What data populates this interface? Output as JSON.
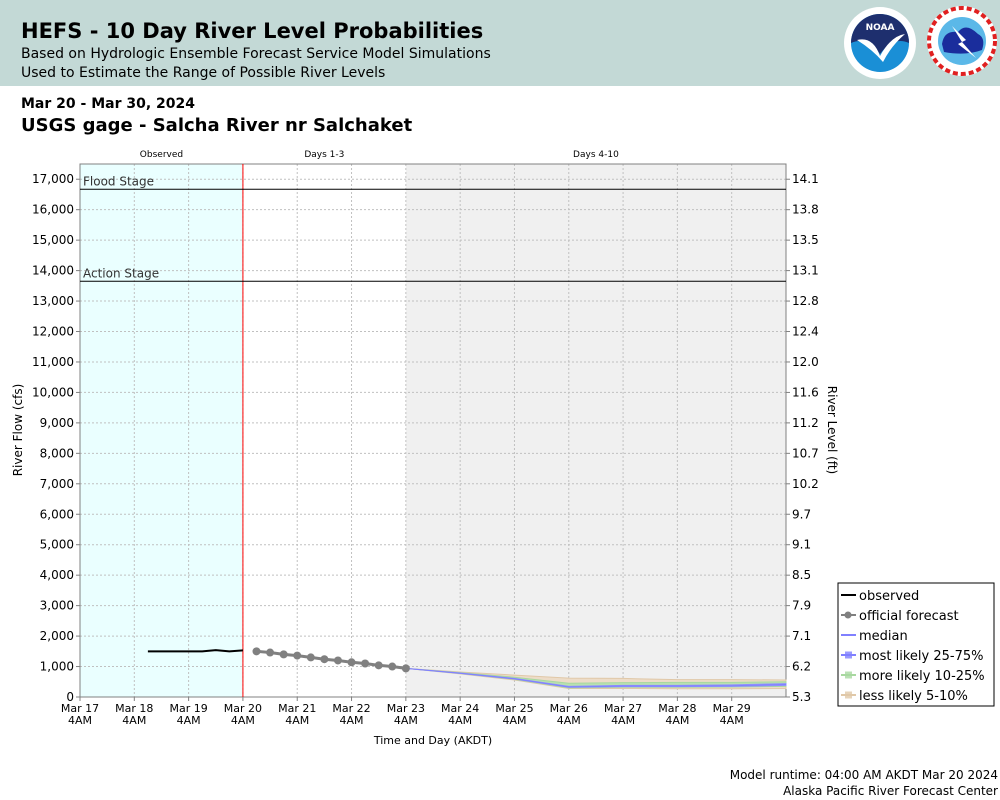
{
  "header": {
    "title": "HEFS - 10 Day River Level Probabilities",
    "subtitle1": "Based on Hydrologic Ensemble Forecast Service Model Simulations",
    "subtitle2": "Used to Estimate the Range of Possible River Levels",
    "logos": [
      "NOAA",
      "National Weather Service"
    ]
  },
  "dates": "Mar 20 - Mar 30, 2024",
  "gage": "USGS gage - Salcha River nr Salchaket",
  "footer": {
    "runtime": "Model runtime: 04:00 AM AKDT Mar 20 2024",
    "center": "Alaska Pacific River Forecast Center"
  },
  "colors": {
    "observed_bg": "#eaffff",
    "days410_bg": "#f0f0f0",
    "observed": "#000000",
    "forecast": "#808080",
    "median": "#8080ff",
    "p25_75": "#8080ff",
    "p10_25": "#a8d8a0",
    "p05_10": "#eddcc8",
    "now_line": "#ff0000"
  },
  "chart_data": {
    "type": "line",
    "xlabel": "Time and Day (AKDT)",
    "ylabel": "River Flow (cfs)",
    "ylabel_right": "River Level (ft)",
    "x_units": "days since Mar 17 4AM",
    "xlim": [
      0,
      13
    ],
    "ylim": [
      0,
      17500
    ],
    "x_ticks": [
      {
        "v": 0,
        "l1": "Mar 17",
        "l2": "4AM"
      },
      {
        "v": 1,
        "l1": "Mar 18",
        "l2": "4AM"
      },
      {
        "v": 2,
        "l1": "Mar 19",
        "l2": "4AM"
      },
      {
        "v": 3,
        "l1": "Mar 20",
        "l2": "4AM"
      },
      {
        "v": 4,
        "l1": "Mar 21",
        "l2": "4AM"
      },
      {
        "v": 5,
        "l1": "Mar 22",
        "l2": "4AM"
      },
      {
        "v": 6,
        "l1": "Mar 23",
        "l2": "4AM"
      },
      {
        "v": 7,
        "l1": "Mar 24",
        "l2": "4AM"
      },
      {
        "v": 8,
        "l1": "Mar 25",
        "l2": "4AM"
      },
      {
        "v": 9,
        "l1": "Mar 26",
        "l2": "4AM"
      },
      {
        "v": 10,
        "l1": "Mar 27",
        "l2": "4AM"
      },
      {
        "v": 11,
        "l1": "Mar 28",
        "l2": "4AM"
      },
      {
        "v": 12,
        "l1": "Mar 29",
        "l2": "4AM"
      }
    ],
    "y_ticks": [
      0,
      1000,
      2000,
      3000,
      4000,
      5000,
      6000,
      7000,
      8000,
      9000,
      10000,
      11000,
      12000,
      13000,
      14000,
      15000,
      16000,
      17000
    ],
    "y_tick_labels": [
      "0",
      "1,000",
      "2,000",
      "3,000",
      "4,000",
      "5,000",
      "6,000",
      "7,000",
      "8,000",
      "9,000",
      "10,000",
      "11,000",
      "12,000",
      "13,000",
      "14,000",
      "15,000",
      "16,000",
      "17,000"
    ],
    "y_right_labels": [
      "5.3",
      "6.2",
      "7.1",
      "7.9",
      "8.5",
      "9.1",
      "9.7",
      "10.2",
      "10.7",
      "11.2",
      "11.6",
      "12.0",
      "12.4",
      "12.8",
      "13.1",
      "13.5",
      "13.8",
      "14.1"
    ],
    "regions": [
      {
        "label": "Observed",
        "from": 0,
        "to": 3
      },
      {
        "label": "Days 1-3",
        "from": 3,
        "to": 6
      },
      {
        "label": "Days 4-10",
        "from": 6,
        "to": 13
      }
    ],
    "thresholds": [
      {
        "label": "Flood Stage",
        "value": 16670
      },
      {
        "label": "Action Stage",
        "value": 13650
      }
    ],
    "observed": {
      "x": [
        1.25,
        1.5,
        1.75,
        2.0,
        2.25,
        2.5,
        2.75,
        3.0
      ],
      "y": [
        1500,
        1500,
        1500,
        1500,
        1500,
        1540,
        1500,
        1530
      ]
    },
    "official_forecast": {
      "x": [
        3.25,
        3.5,
        3.75,
        4.0,
        4.25,
        4.5,
        4.75,
        5.0,
        5.25,
        5.5,
        5.75,
        6.0
      ],
      "y": [
        1500,
        1460,
        1400,
        1360,
        1300,
        1240,
        1200,
        1140,
        1100,
        1040,
        1000,
        940
      ]
    },
    "ensemble": {
      "x": [
        6,
        7,
        8,
        9,
        10,
        11,
        12,
        13
      ],
      "p05": [
        940,
        760,
        560,
        280,
        280,
        270,
        270,
        280
      ],
      "p10": [
        940,
        770,
        580,
        300,
        320,
        320,
        330,
        350
      ],
      "p25": [
        940,
        775,
        590,
        320,
        340,
        340,
        350,
        380
      ],
      "median": [
        940,
        780,
        600,
        330,
        360,
        360,
        370,
        410
      ],
      "p75": [
        940,
        790,
        610,
        350,
        380,
        380,
        400,
        440
      ],
      "p90": [
        940,
        800,
        650,
        450,
        470,
        480,
        480,
        500
      ],
      "p95": [
        940,
        820,
        720,
        620,
        610,
        570,
        570,
        560
      ]
    },
    "legend": {
      "position": "bottom-right",
      "items": [
        "observed",
        "official forecast",
        "median",
        "most likely 25-75%",
        "more likely 10-25%",
        "less likely 5-10%"
      ]
    }
  }
}
